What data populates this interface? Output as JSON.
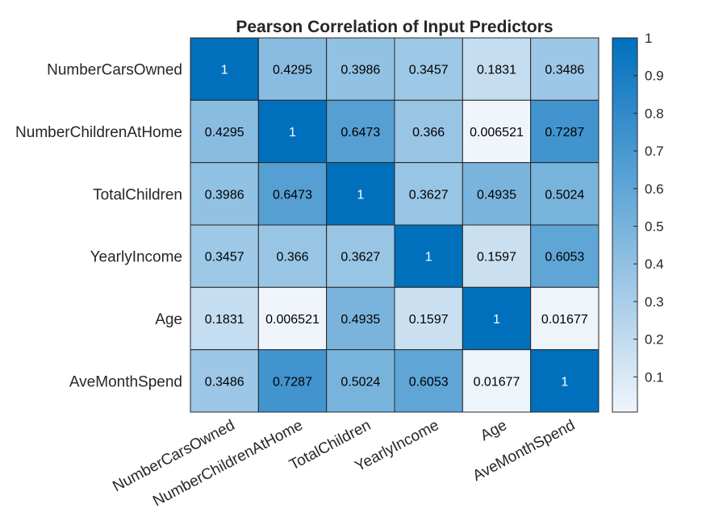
{
  "chart_data": {
    "type": "heatmap",
    "title": "Pearson Correlation of Input Predictors",
    "xlabel": "",
    "ylabel": "",
    "row_labels": [
      "NumberCarsOwned",
      "NumberChildrenAtHome",
      "TotalChildren",
      "YearlyIncome",
      "Age",
      "AveMonthSpend"
    ],
    "col_labels": [
      "NumberCarsOwned",
      "NumberChildrenAtHome",
      "TotalChildren",
      "YearlyIncome",
      "Age",
      "AveMonthSpend"
    ],
    "values": [
      [
        "1",
        "0.4295",
        "0.3986",
        "0.3457",
        "0.1831",
        "0.3486"
      ],
      [
        "0.4295",
        "1",
        "0.6473",
        "0.366",
        "0.006521",
        "0.7287"
      ],
      [
        "0.3986",
        "0.6473",
        "1",
        "0.3627",
        "0.4935",
        "0.5024"
      ],
      [
        "0.3457",
        "0.366",
        "0.3627",
        "1",
        "0.1597",
        "0.6053"
      ],
      [
        "0.1831",
        "0.006521",
        "0.4935",
        "0.1597",
        "1",
        "0.01677"
      ],
      [
        "0.3486",
        "0.7287",
        "0.5024",
        "0.6053",
        "0.01677",
        "1"
      ]
    ],
    "colorbar": {
      "range": [
        0.006521,
        1
      ],
      "ticks": [
        "0.1",
        "0.2",
        "0.3",
        "0.4",
        "0.5",
        "0.6",
        "0.7",
        "0.8",
        "0.9",
        "1"
      ],
      "color_low": "#eff5fb",
      "color_high": "#0070bd"
    }
  }
}
